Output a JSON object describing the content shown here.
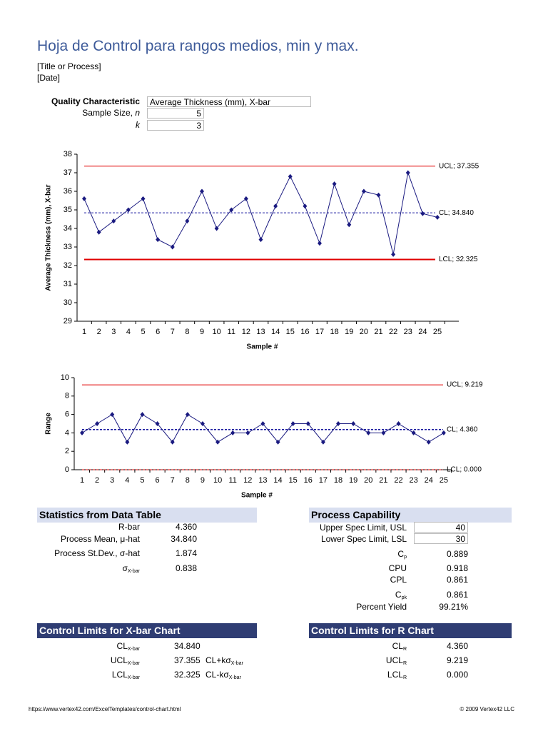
{
  "header": {
    "title": "Hoja de Control para rangos medios, min y max.",
    "process": "[Title or Process]",
    "date": "[Date]"
  },
  "inputs": [
    {
      "label": "Quality Characteristic",
      "value": "Average Thickness (mm), X-bar"
    },
    {
      "label": "Sample Size, ",
      "italic": "n",
      "value": "5"
    },
    {
      "italic": "k",
      "value": "3"
    }
  ],
  "chart_data": [
    {
      "type": "line",
      "y_label": "Average Thickness (mm), X-bar",
      "x_label": "Sample #",
      "categories": [
        1,
        2,
        3,
        4,
        5,
        6,
        7,
        8,
        9,
        10,
        11,
        12,
        13,
        14,
        15,
        16,
        17,
        18,
        19,
        20,
        21,
        22,
        23,
        24,
        25
      ],
      "series": [
        {
          "color": "#1a1a80",
          "values": [
            35.6,
            33.8,
            34.4,
            35.0,
            35.6,
            33.4,
            33.0,
            34.4,
            36.0,
            34.0,
            35.0,
            35.6,
            33.4,
            35.2,
            36.8,
            35.2,
            33.2,
            36.4,
            34.2,
            36.0,
            35.8,
            32.6,
            37.0,
            34.8,
            34.6
          ]
        }
      ],
      "ylim": [
        29,
        38
      ],
      "yticks": [
        29,
        30,
        31,
        32,
        33,
        34,
        35,
        36,
        37,
        38
      ],
      "reference_lines": [
        {
          "value": 37.355,
          "label": "UCL; 37.355",
          "color": "#e00000",
          "dashed": false,
          "width": 1
        },
        {
          "value": 34.84,
          "label": "CL; 34.840",
          "color": "#1a1aa0",
          "dashed": true,
          "width": 1
        },
        {
          "value": 32.325,
          "label": "LCL; 32.325",
          "color": "#e00000",
          "dashed": false,
          "width": 2
        }
      ]
    },
    {
      "type": "line",
      "y_label": "Range",
      "x_label": "Sample #",
      "categories": [
        1,
        2,
        3,
        4,
        5,
        6,
        7,
        8,
        9,
        10,
        11,
        12,
        13,
        14,
        15,
        16,
        17,
        18,
        19,
        20,
        21,
        22,
        23,
        24,
        25
      ],
      "series": [
        {
          "color": "#1a1a80",
          "values": [
            4,
            5,
            6,
            3,
            6,
            5,
            3,
            6,
            5,
            3,
            4,
            4,
            5,
            3,
            5,
            5,
            3,
            5,
            5,
            4,
            4,
            5,
            4,
            3,
            4
          ]
        }
      ],
      "ylim": [
        0,
        10
      ],
      "yticks": [
        0,
        2,
        4,
        6,
        8,
        10
      ],
      "reference_lines": [
        {
          "value": 9.219,
          "label": "UCL; 9.219",
          "color": "#e00000",
          "dashed": false,
          "width": 1
        },
        {
          "value": 4.36,
          "label": "CL; 4.360",
          "color": "#1a1aa0",
          "dashed": true,
          "width": 1.5
        },
        {
          "value": 0,
          "label": "LCL; 0.000",
          "color": "#e00000",
          "dashed": true,
          "width": 1
        }
      ]
    }
  ],
  "statistics": {
    "title": "Statistics from Data Table",
    "rows": [
      {
        "label": "R-bar",
        "value": "4.360"
      },
      {
        "label": "Process Mean, μ-hat",
        "value": "34.840"
      },
      {
        "label": "Process St.Dev., σ-hat",
        "value": "1.874"
      },
      {
        "label": "σ",
        "sub": "X-bar",
        "value": "0.838"
      }
    ]
  },
  "capability": {
    "title": "Process Capability",
    "rows": [
      {
        "label": "Upper Spec Limit, USL",
        "value": "40",
        "input": true
      },
      {
        "label": "Lower Spec Limit, LSL",
        "value": "30",
        "input": true
      },
      {
        "label": "C",
        "sub": "p",
        "value": "0.889"
      },
      {
        "label": "CPU",
        "value": "0.918"
      },
      {
        "label": "CPL",
        "value": "0.861"
      },
      {
        "label": "C",
        "sub": "pk",
        "value": "0.861"
      },
      {
        "label": "Percent Yield",
        "value": "99.21%"
      }
    ]
  },
  "xbar_limits": {
    "title": "Control Limits for X-bar Chart",
    "rows": [
      {
        "label": "CL",
        "sub": "X-bar",
        "value": "34.840"
      },
      {
        "label": "UCL",
        "sub": "X-bar",
        "value": "37.355",
        "formula": "CL+kσ",
        "formula_sub": "X-bar"
      },
      {
        "label": "LCL",
        "sub": "X-bar",
        "value": "32.325",
        "formula": "CL-kσ",
        "formula_sub": "X-bar"
      }
    ]
  },
  "r_limits": {
    "title": "Control Limits for R Chart",
    "rows": [
      {
        "label": "CL",
        "sub": "R",
        "value": "4.360"
      },
      {
        "label": "UCL",
        "sub": "R",
        "value": "9.219"
      },
      {
        "label": "LCL",
        "sub": "R",
        "value": "0.000"
      }
    ]
  },
  "footer": {
    "url": "https://www.vertex42.com/ExcelTemplates/control-chart.html",
    "copyright": "© 2009 Vertex42 LLC"
  }
}
